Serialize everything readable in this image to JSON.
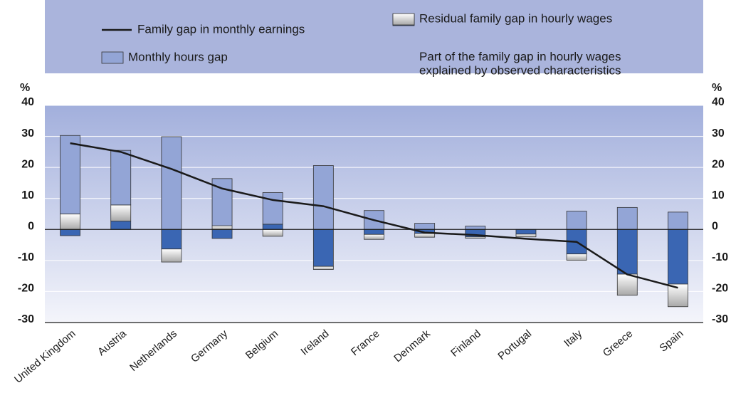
{
  "chart_data": {
    "type": "bar-line",
    "ylabel": "%",
    "y2label": "%",
    "categories": [
      "United Kingdom",
      "Austria",
      "Netherlands",
      "Germany",
      "Belgium",
      "Ireland",
      "France",
      "Denmark",
      "Finland",
      "Portugal",
      "Italy",
      "Greece",
      "Spain"
    ],
    "series": [
      {
        "name": "Part of the family gap in hourly wages\nexplained by observed characteristics",
        "kind": "bar",
        "color": "#3a66b3",
        "values": [
          -2,
          2.7,
          -6.3,
          -2.9,
          1.7,
          -11.9,
          -1.6,
          -1.3,
          -2.4,
          -1.5,
          -7.9,
          -14.4,
          -17.6
        ]
      },
      {
        "name": "Residual family gap in hourly wages",
        "kind": "bar",
        "color": "#d8d8d8",
        "values": [
          5,
          5.2,
          -4.2,
          1.2,
          -2.2,
          -1.0,
          -1.6,
          -1.2,
          -0.4,
          -0.9,
          -2.0,
          -6.8,
          -7.3
        ]
      },
      {
        "name": "Monthly hours gap",
        "kind": "bar",
        "color": "#93a5d6",
        "values": [
          25.3,
          17.6,
          29.9,
          15.2,
          10.2,
          20.6,
          6.1,
          2.0,
          1.1,
          0,
          5.9,
          7.1,
          5.6
        ]
      },
      {
        "name": "Family gap in monthly earnings",
        "kind": "line",
        "color": "#1a1a1a",
        "values": [
          27.8,
          25,
          19.5,
          13.2,
          9.5,
          7.5,
          3,
          -1,
          -1.8,
          -3,
          -4,
          -14.5,
          -18.8
        ]
      }
    ],
    "ylim": [
      -30,
      40
    ],
    "yticks": [
      -30,
      -20,
      -10,
      0,
      10,
      20,
      30,
      40
    ],
    "y2lim": [
      -30,
      40
    ],
    "y2ticks": [
      -30,
      -20,
      -10,
      0,
      10,
      20,
      30,
      40
    ],
    "grid": true
  }
}
